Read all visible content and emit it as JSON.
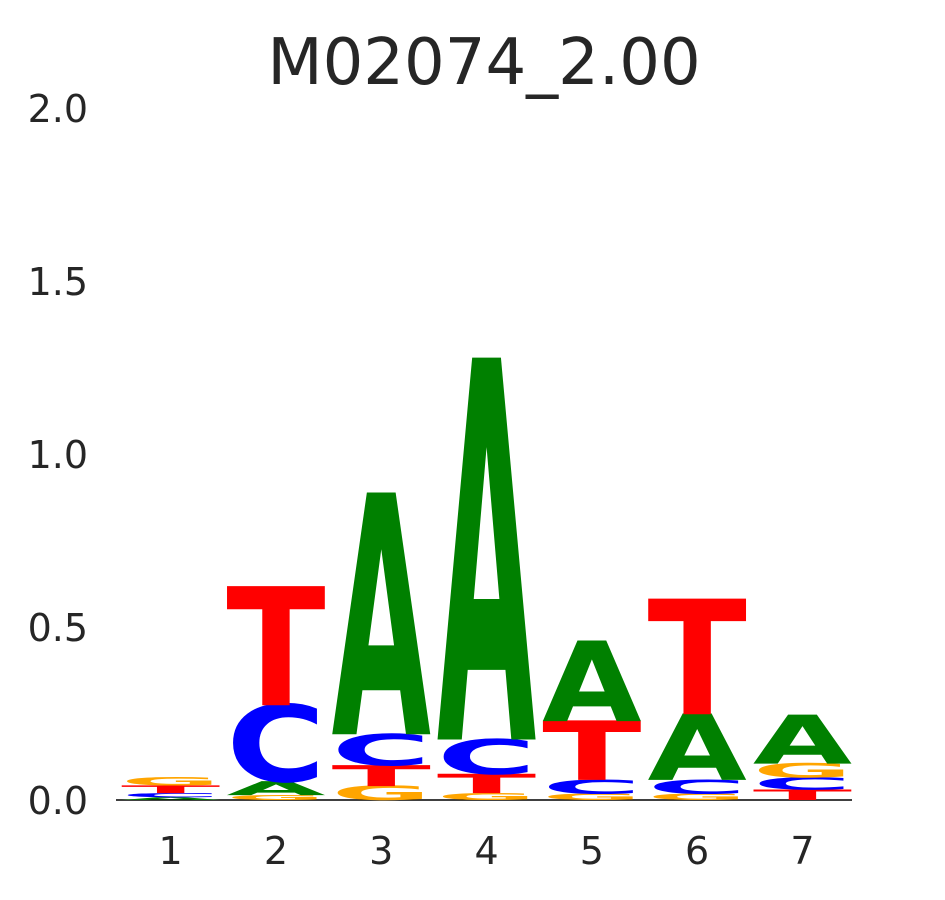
{
  "chart_data": {
    "type": "sequence-logo",
    "title": "M02074_2.00",
    "xlabel": "",
    "ylabel": "",
    "ylim": [
      0,
      2
    ],
    "yticks": [
      "0.0",
      "0.5",
      "1.0",
      "1.5",
      "2.0"
    ],
    "positions": [
      "1",
      "2",
      "3",
      "4",
      "5",
      "6",
      "7"
    ],
    "colors": {
      "A": "#008000",
      "C": "#0000ff",
      "G": "#ffa500",
      "T": "#ff0000"
    },
    "columns": [
      [
        {
          "base": "A",
          "height": 0.008
        },
        {
          "base": "C",
          "height": 0.012
        },
        {
          "base": "T",
          "height": 0.022
        },
        {
          "base": "G",
          "height": 0.024
        }
      ],
      [
        {
          "base": "G",
          "height": 0.014
        },
        {
          "base": "A",
          "height": 0.04
        },
        {
          "base": "C",
          "height": 0.22
        },
        {
          "base": "T",
          "height": 0.34
        }
      ],
      [
        {
          "base": "G",
          "height": 0.04
        },
        {
          "base": "T",
          "height": 0.06
        },
        {
          "base": "C",
          "height": 0.09
        },
        {
          "base": "A",
          "height": 0.69
        }
      ],
      [
        {
          "base": "G",
          "height": 0.02
        },
        {
          "base": "T",
          "height": 0.055
        },
        {
          "base": "C",
          "height": 0.1
        },
        {
          "base": "A",
          "height": 1.09
        }
      ],
      [
        {
          "base": "G",
          "height": 0.018
        },
        {
          "base": "C",
          "height": 0.04
        },
        {
          "base": "T",
          "height": 0.17
        },
        {
          "base": "A",
          "height": 0.23
        }
      ],
      [
        {
          "base": "G",
          "height": 0.018
        },
        {
          "base": "C",
          "height": 0.04
        },
        {
          "base": "A",
          "height": 0.19
        },
        {
          "base": "T",
          "height": 0.33
        }
      ],
      [
        {
          "base": "T",
          "height": 0.03
        },
        {
          "base": "C",
          "height": 0.035
        },
        {
          "base": "G",
          "height": 0.04
        },
        {
          "base": "A",
          "height": 0.14
        }
      ]
    ]
  }
}
